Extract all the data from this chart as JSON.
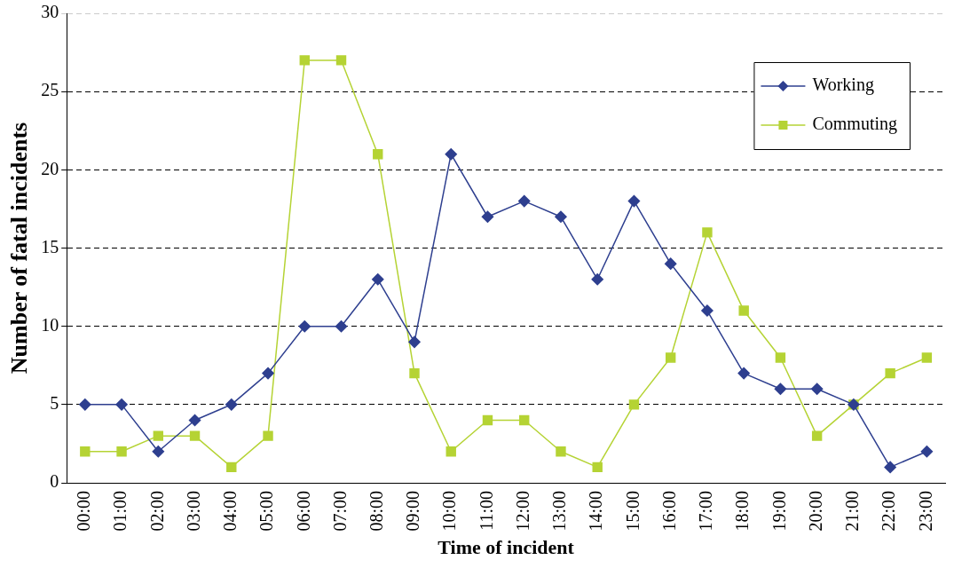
{
  "chart_data": {
    "type": "line",
    "xlabel": "Time of incident",
    "ylabel": "Number of fatal incidents",
    "categories": [
      "00:00",
      "01:00",
      "02:00",
      "03:00",
      "04:00",
      "05:00",
      "06:00",
      "07:00",
      "08:00",
      "09:00",
      "10:00",
      "11:00",
      "12:00",
      "13:00",
      "14:00",
      "15:00",
      "16:00",
      "17:00",
      "18:00",
      "19:00",
      "20:00",
      "21:00",
      "22:00",
      "23:00"
    ],
    "series": [
      {
        "name": "Working",
        "color": "#2e3f8f",
        "marker": "diamond",
        "values": [
          5,
          5,
          2,
          4,
          5,
          7,
          10,
          10,
          13,
          9,
          21,
          17,
          18,
          17,
          13,
          18,
          14,
          11,
          7,
          6,
          6,
          5,
          1,
          2
        ]
      },
      {
        "name": "Commuting",
        "color": "#b5d334",
        "marker": "square",
        "values": [
          2,
          2,
          3,
          3,
          1,
          3,
          27,
          27,
          21,
          7,
          2,
          4,
          4,
          2,
          1,
          5,
          8,
          16,
          11,
          8,
          3,
          5,
          7,
          8
        ]
      }
    ],
    "ylim": [
      0,
      30
    ],
    "yticks": [
      0,
      5,
      10,
      15,
      20,
      25,
      30
    ],
    "grid": "y",
    "legend": "top right",
    "line_style": "solid"
  }
}
